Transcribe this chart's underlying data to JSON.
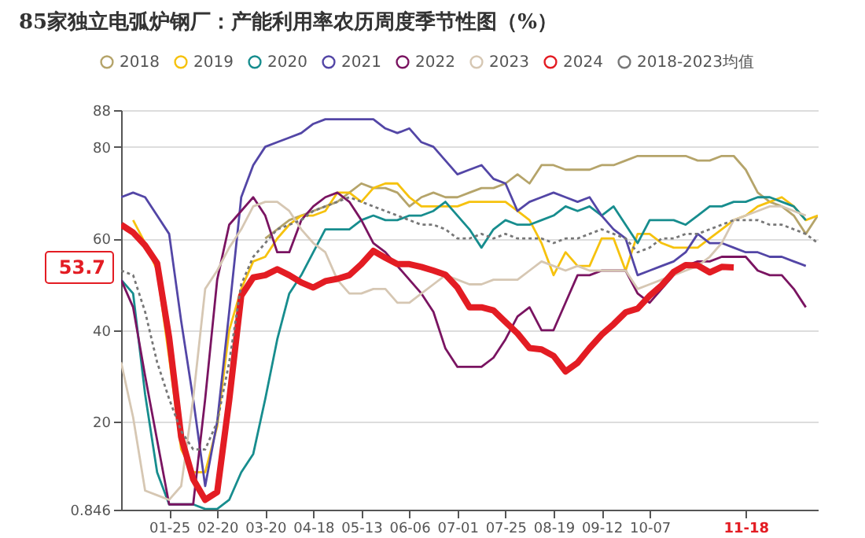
{
  "chart_data": {
    "type": "line",
    "title": "85家独立电弧炉钢厂：产能利用率农历周度季节性图（%）",
    "categories": [
      null,
      null,
      null,
      null,
      "01-25",
      null,
      null,
      null,
      "02-20",
      null,
      null,
      null,
      "03-20",
      null,
      null,
      null,
      "04-18",
      null,
      null,
      null,
      "05-13",
      null,
      null,
      null,
      "06-06",
      null,
      null,
      null,
      "07-01",
      null,
      null,
      null,
      "07-25",
      null,
      null,
      null,
      "08-19",
      null,
      null,
      null,
      "09-12",
      null,
      null,
      null,
      "10-07",
      null,
      null,
      null,
      null,
      null,
      null,
      null,
      "11-18",
      null,
      null,
      null,
      null,
      null,
      null
    ],
    "ylim": [
      0.846,
      88
    ],
    "yticks": [
      0.846,
      20,
      40,
      60,
      80,
      88
    ],
    "grid": "y",
    "legend": "top",
    "annotations": [
      "53.7"
    ],
    "series": [
      {
        "name": "2018",
        "color": "#b5a46a",
        "values": [
          null,
          null,
          null,
          null,
          null,
          null,
          null,
          null,
          null,
          null,
          null,
          null,
          60,
          62,
          64,
          65,
          66,
          67,
          68,
          70,
          72,
          71,
          71,
          70,
          67,
          69,
          70,
          69,
          69,
          70,
          71,
          71,
          72,
          74,
          72,
          76,
          76,
          75,
          75,
          75,
          76,
          76,
          77,
          78,
          78,
          78,
          78,
          78,
          77,
          77,
          78,
          78,
          75,
          70,
          68,
          67,
          65,
          61,
          65
        ]
      },
      {
        "name": "2019",
        "color": "#f6c20e",
        "values": [
          null,
          64,
          59,
          53,
          34,
          14,
          9,
          9,
          19,
          40,
          49,
          55,
          56,
          60,
          63,
          65,
          65,
          66,
          70,
          70,
          68,
          71,
          72,
          72,
          69,
          67,
          67,
          67,
          67,
          68,
          68,
          68,
          68,
          66,
          64,
          59,
          52,
          57,
          54,
          54,
          60,
          60,
          53,
          61,
          61,
          59,
          58,
          58,
          58,
          60,
          62,
          64,
          65,
          67,
          68,
          69,
          67,
          64,
          65
        ]
      },
      {
        "name": "2020",
        "color": "#178d8e",
        "values": [
          51,
          48,
          26,
          9,
          2,
          2,
          2,
          1,
          1,
          3,
          9,
          13,
          25,
          38,
          48,
          52,
          57,
          62,
          62,
          62,
          64,
          65,
          64,
          64,
          65,
          65,
          66,
          68,
          65,
          62,
          58,
          62,
          64,
          63,
          63,
          64,
          65,
          67,
          66,
          67,
          65,
          67,
          63,
          59,
          64,
          64,
          64,
          63,
          65,
          67,
          67,
          68,
          68,
          69,
          69,
          68,
          67,
          64,
          null
        ]
      },
      {
        "name": "2021",
        "color": "#5346a6",
        "values": [
          69,
          70,
          69,
          65,
          61,
          42,
          25,
          6,
          20,
          44,
          69,
          76,
          80,
          81,
          82,
          83,
          85,
          86,
          86,
          86,
          86,
          86,
          84,
          83,
          84,
          81,
          80,
          77,
          74,
          75,
          76,
          73,
          72,
          66,
          68,
          69,
          70,
          69,
          68,
          69,
          65,
          62,
          60,
          52,
          53,
          54,
          55,
          57,
          61,
          59,
          59,
          58,
          57,
          57,
          56,
          56,
          55,
          54,
          null
        ]
      },
      {
        "name": "2022",
        "color": "#7a1461",
        "values": [
          51,
          45,
          30,
          16,
          2,
          2,
          2,
          25,
          51,
          63,
          66,
          69,
          65,
          57,
          57,
          64,
          67,
          69,
          70,
          68,
          64,
          59,
          57,
          54,
          51,
          48,
          44,
          36,
          32,
          32,
          32,
          34,
          38,
          43,
          45,
          40,
          40,
          46,
          52,
          52,
          53,
          53,
          53,
          48,
          46,
          49,
          52,
          54,
          55,
          55,
          56,
          56,
          56,
          53,
          52,
          52,
          49,
          45,
          null
        ]
      },
      {
        "name": "2023",
        "color": "#d6c7b3",
        "values": [
          33,
          21,
          5,
          4,
          3,
          6,
          25,
          49,
          53,
          58,
          62,
          67,
          68,
          68,
          66,
          62,
          59,
          57,
          51,
          48,
          48,
          49,
          49,
          46,
          46,
          48,
          50,
          52,
          51,
          50,
          50,
          51,
          51,
          51,
          53,
          55,
          54,
          53,
          54,
          53,
          53,
          53,
          53,
          49,
          50,
          51,
          52,
          53,
          54,
          56,
          59,
          64,
          65,
          66,
          67,
          67,
          66,
          65,
          null
        ]
      },
      {
        "name": "2024",
        "color": "#e31c23",
        "values": [
          63,
          61.3,
          58.5,
          54.6,
          38.4,
          16.7,
          7.5,
          3,
          4.7,
          24.7,
          47.5,
          51.5,
          52,
          53.3,
          52,
          50.4,
          49.3,
          50.7,
          51.2,
          52,
          54.4,
          57.3,
          55.8,
          54.4,
          54.4,
          53.8,
          53,
          52.1,
          49.3,
          45,
          45,
          44.3,
          41.8,
          39.3,
          36.1,
          35.8,
          34.4,
          31,
          32.9,
          36.1,
          39,
          41.3,
          43.9,
          44.7,
          47.5,
          49.8,
          52.7,
          54.2,
          54.1,
          52.6,
          53.8,
          53.7,
          null,
          null,
          null,
          null,
          null,
          null,
          null
        ]
      },
      {
        "name": "2018-2023均值",
        "color": "#777777",
        "line_style": "dotted",
        "values": [
          53,
          52,
          44,
          33,
          25,
          18,
          14,
          14,
          20,
          33,
          50,
          56,
          59,
          62,
          63,
          64,
          66,
          67,
          68,
          69,
          68,
          67,
          66,
          65,
          64,
          63,
          63,
          62,
          60,
          60,
          61,
          60,
          61,
          60,
          60,
          60,
          59,
          60,
          60,
          61,
          62,
          61,
          60,
          57,
          58,
          60,
          60,
          61,
          61,
          62,
          63,
          64,
          64,
          64,
          63,
          63,
          62,
          61,
          59
        ]
      }
    ]
  }
}
